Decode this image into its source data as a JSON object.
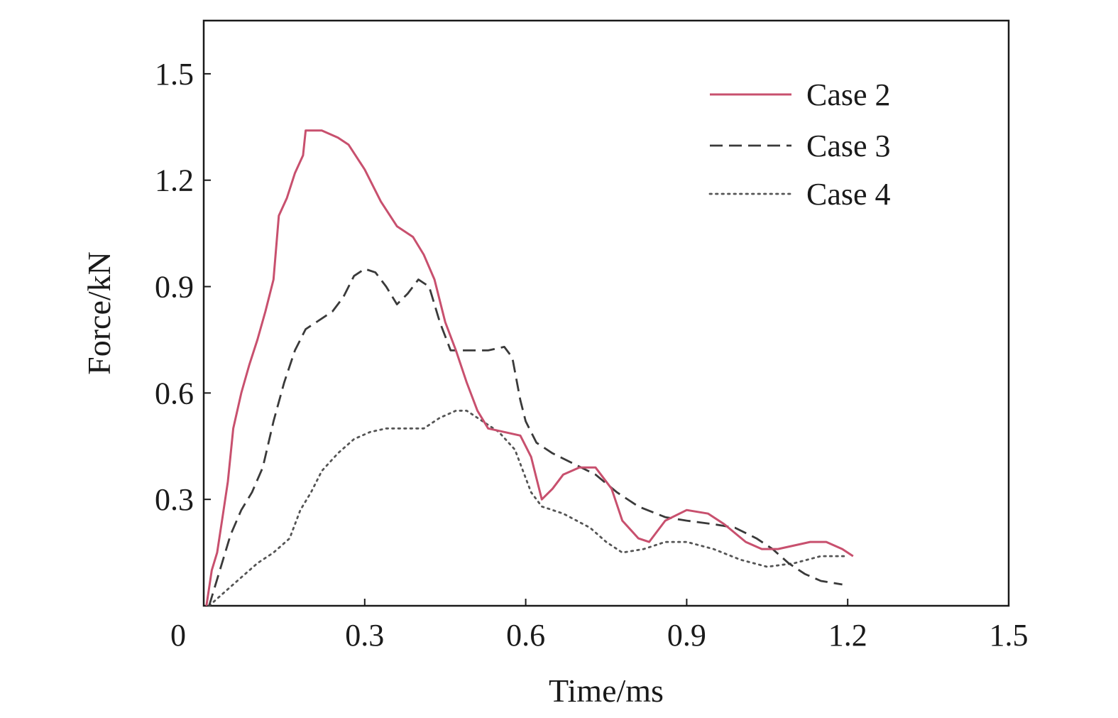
{
  "chart_data": {
    "type": "line",
    "xlabel": "Time/ms",
    "ylabel": "Force/kN",
    "xlim": [
      0,
      1.5
    ],
    "ylim": [
      0,
      1.65
    ],
    "xticks": [
      0,
      0.3,
      0.6,
      0.9,
      1.2,
      1.5
    ],
    "xtick_labels": [
      "0",
      "0.3",
      "0.6",
      "0.9",
      "1.2",
      "1.5"
    ],
    "yticks": [
      0.3,
      0.6,
      0.9,
      1.2,
      1.5
    ],
    "ytick_labels": [
      "0.3",
      "0.6",
      "0.9",
      "1.2",
      "1.5"
    ],
    "grid": false,
    "legend_position": "top-right",
    "series": [
      {
        "name": "Case 2",
        "style": "solid",
        "color": "#c8506e",
        "points": [
          [
            0.005,
            0.0
          ],
          [
            0.015,
            0.1
          ],
          [
            0.025,
            0.15
          ],
          [
            0.035,
            0.25
          ],
          [
            0.045,
            0.35
          ],
          [
            0.055,
            0.5
          ],
          [
            0.07,
            0.6
          ],
          [
            0.085,
            0.68
          ],
          [
            0.1,
            0.75
          ],
          [
            0.115,
            0.83
          ],
          [
            0.13,
            0.92
          ],
          [
            0.14,
            1.1
          ],
          [
            0.155,
            1.15
          ],
          [
            0.17,
            1.22
          ],
          [
            0.185,
            1.27
          ],
          [
            0.19,
            1.34
          ],
          [
            0.22,
            1.34
          ],
          [
            0.25,
            1.32
          ],
          [
            0.27,
            1.3
          ],
          [
            0.3,
            1.23
          ],
          [
            0.33,
            1.14
          ],
          [
            0.36,
            1.07
          ],
          [
            0.39,
            1.04
          ],
          [
            0.41,
            0.99
          ],
          [
            0.43,
            0.92
          ],
          [
            0.45,
            0.8
          ],
          [
            0.47,
            0.72
          ],
          [
            0.49,
            0.63
          ],
          [
            0.51,
            0.55
          ],
          [
            0.53,
            0.5
          ],
          [
            0.56,
            0.49
          ],
          [
            0.59,
            0.48
          ],
          [
            0.61,
            0.42
          ],
          [
            0.62,
            0.36
          ],
          [
            0.63,
            0.3
          ],
          [
            0.65,
            0.33
          ],
          [
            0.67,
            0.37
          ],
          [
            0.7,
            0.39
          ],
          [
            0.73,
            0.39
          ],
          [
            0.76,
            0.33
          ],
          [
            0.78,
            0.24
          ],
          [
            0.81,
            0.19
          ],
          [
            0.83,
            0.18
          ],
          [
            0.86,
            0.24
          ],
          [
            0.9,
            0.27
          ],
          [
            0.94,
            0.26
          ],
          [
            0.97,
            0.23
          ],
          [
            1.01,
            0.18
          ],
          [
            1.04,
            0.16
          ],
          [
            1.07,
            0.16
          ],
          [
            1.1,
            0.17
          ],
          [
            1.13,
            0.18
          ],
          [
            1.16,
            0.18
          ],
          [
            1.19,
            0.16
          ],
          [
            1.21,
            0.14
          ]
        ]
      },
      {
        "name": "Case 3",
        "style": "dashed",
        "color": "#3a3a3a",
        "points": [
          [
            0.01,
            0.0
          ],
          [
            0.03,
            0.1
          ],
          [
            0.05,
            0.2
          ],
          [
            0.07,
            0.27
          ],
          [
            0.09,
            0.32
          ],
          [
            0.11,
            0.39
          ],
          [
            0.13,
            0.52
          ],
          [
            0.15,
            0.63
          ],
          [
            0.17,
            0.72
          ],
          [
            0.19,
            0.78
          ],
          [
            0.21,
            0.8
          ],
          [
            0.24,
            0.83
          ],
          [
            0.26,
            0.87
          ],
          [
            0.28,
            0.93
          ],
          [
            0.3,
            0.95
          ],
          [
            0.32,
            0.94
          ],
          [
            0.34,
            0.9
          ],
          [
            0.36,
            0.85
          ],
          [
            0.38,
            0.88
          ],
          [
            0.4,
            0.92
          ],
          [
            0.42,
            0.9
          ],
          [
            0.44,
            0.8
          ],
          [
            0.46,
            0.72
          ],
          [
            0.5,
            0.72
          ],
          [
            0.53,
            0.72
          ],
          [
            0.56,
            0.73
          ],
          [
            0.575,
            0.7
          ],
          [
            0.59,
            0.58
          ],
          [
            0.6,
            0.52
          ],
          [
            0.62,
            0.46
          ],
          [
            0.65,
            0.43
          ],
          [
            0.69,
            0.4
          ],
          [
            0.73,
            0.37
          ],
          [
            0.77,
            0.32
          ],
          [
            0.81,
            0.28
          ],
          [
            0.86,
            0.25
          ],
          [
            0.9,
            0.24
          ],
          [
            0.95,
            0.23
          ],
          [
            0.99,
            0.22
          ],
          [
            1.03,
            0.19
          ],
          [
            1.06,
            0.16
          ],
          [
            1.09,
            0.12
          ],
          [
            1.12,
            0.09
          ],
          [
            1.15,
            0.07
          ],
          [
            1.19,
            0.06
          ]
        ]
      },
      {
        "name": "Case 4",
        "style": "dotted",
        "color": "#555555",
        "points": [
          [
            0.01,
            0.0
          ],
          [
            0.04,
            0.04
          ],
          [
            0.07,
            0.08
          ],
          [
            0.1,
            0.12
          ],
          [
            0.13,
            0.15
          ],
          [
            0.16,
            0.19
          ],
          [
            0.18,
            0.27
          ],
          [
            0.2,
            0.32
          ],
          [
            0.22,
            0.38
          ],
          [
            0.25,
            0.43
          ],
          [
            0.28,
            0.47
          ],
          [
            0.31,
            0.49
          ],
          [
            0.34,
            0.5
          ],
          [
            0.38,
            0.5
          ],
          [
            0.41,
            0.5
          ],
          [
            0.44,
            0.53
          ],
          [
            0.47,
            0.55
          ],
          [
            0.49,
            0.55
          ],
          [
            0.52,
            0.52
          ],
          [
            0.55,
            0.49
          ],
          [
            0.58,
            0.44
          ],
          [
            0.61,
            0.32
          ],
          [
            0.63,
            0.28
          ],
          [
            0.67,
            0.26
          ],
          [
            0.72,
            0.22
          ],
          [
            0.75,
            0.18
          ],
          [
            0.78,
            0.15
          ],
          [
            0.82,
            0.16
          ],
          [
            0.86,
            0.18
          ],
          [
            0.9,
            0.18
          ],
          [
            0.95,
            0.16
          ],
          [
            1.0,
            0.13
          ],
          [
            1.05,
            0.11
          ],
          [
            1.1,
            0.12
          ],
          [
            1.15,
            0.14
          ],
          [
            1.2,
            0.14
          ]
        ]
      }
    ]
  }
}
